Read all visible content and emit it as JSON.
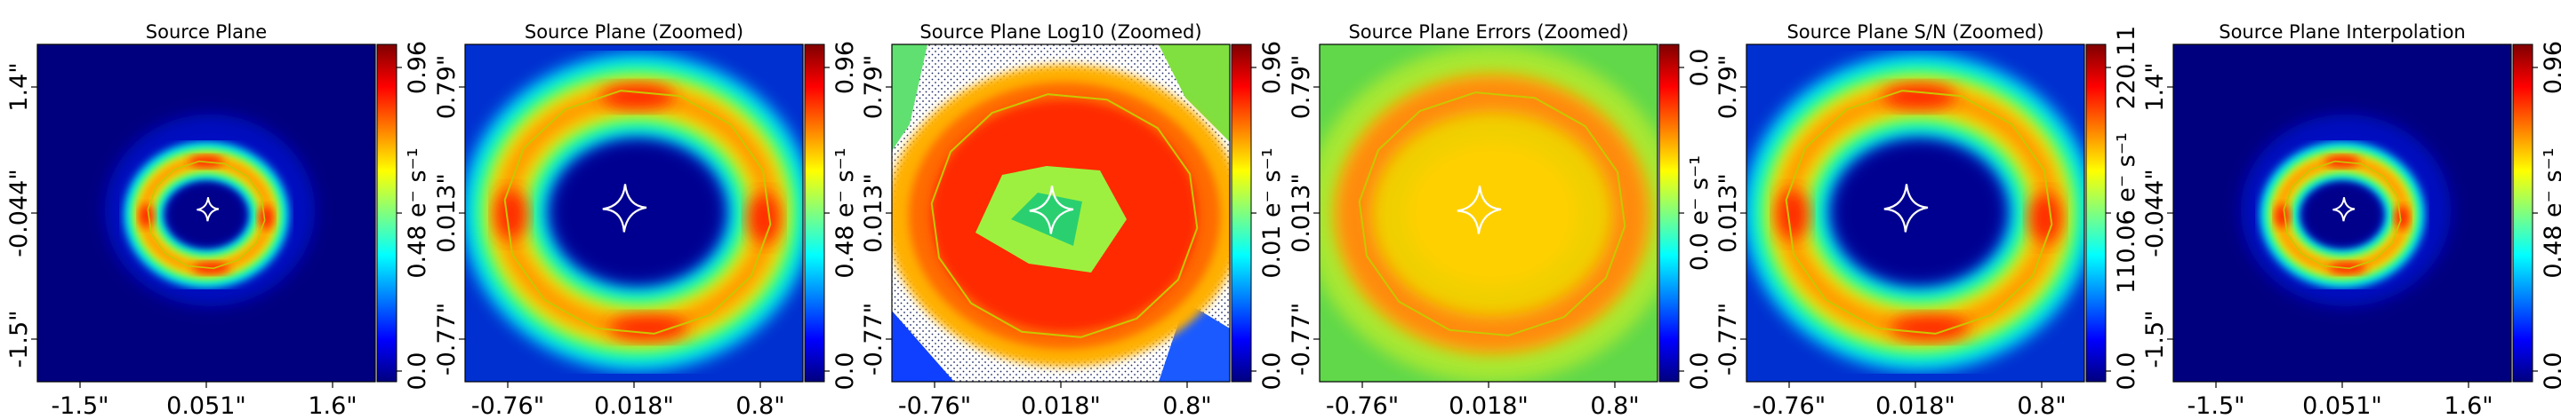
{
  "figure": {
    "colorscale": [
      "#00007f",
      "#0000ff",
      "#007fff",
      "#00ffff",
      "#7fff7f",
      "#ffff00",
      "#ff7f00",
      "#ff0000",
      "#7f0000"
    ],
    "caustic_color": "#ffffff",
    "critical_curve_color": "#c8c800",
    "masked_hatch_color": "#1c2a63"
  },
  "panels": [
    {
      "title": "Source Plane",
      "render": "full",
      "xticks": [
        "-1.5\"",
        "0.051\"",
        "1.6\""
      ],
      "yticks": [
        "1.4\"",
        "-0.044\"",
        "-1.5\""
      ],
      "colorbar": {
        "ticks": [
          "0.96",
          "0.48 e⁻ s⁻¹",
          "0.0"
        ]
      }
    },
    {
      "title": "Source Plane (Zoomed)",
      "render": "zoom",
      "xticks": [
        "-0.76\"",
        "0.018\"",
        "0.8\""
      ],
      "yticks": [
        "0.79\"",
        "0.013\"",
        "-0.77\""
      ],
      "colorbar": {
        "ticks": [
          "0.96",
          "0.48 e⁻ s⁻¹",
          "0.0"
        ]
      }
    },
    {
      "title": "Source Plane Log10 (Zoomed)",
      "render": "log",
      "xticks": [
        "-0.76\"",
        "0.018\"",
        "0.8\""
      ],
      "yticks": [
        "0.79\"",
        "0.013\"",
        "-0.77\""
      ],
      "colorbar": {
        "ticks": [
          "0.96",
          "0.01 e⁻ s⁻¹",
          "0.0"
        ]
      }
    },
    {
      "title": "Source Plane Errors (Zoomed)",
      "render": "errors",
      "xticks": [
        "-0.76\"",
        "0.018\"",
        "0.8\""
      ],
      "yticks": [
        "0.79\"",
        "0.013\"",
        "-0.77\""
      ],
      "colorbar": {
        "ticks": [
          "0.0",
          "0.0 e⁻ s⁻¹",
          "0.0"
        ]
      }
    },
    {
      "title": "Source Plane S/N (Zoomed)",
      "render": "zoom",
      "xticks": [
        "-0.76\"",
        "0.018\"",
        "0.8\""
      ],
      "yticks": [
        "0.79\"",
        "0.013\"",
        "-0.77\""
      ],
      "colorbar": {
        "ticks": [
          "220.11",
          "110.06 e⁻ s⁻¹",
          "0.0"
        ]
      }
    },
    {
      "title": "Source Plane Interpolation",
      "render": "full",
      "xticks": [
        "-1.5\"",
        "0.051\"",
        "1.6\""
      ],
      "yticks": [
        "1.4\"",
        "-0.044\"",
        "-1.5\""
      ],
      "colorbar": {
        "ticks": [
          "0.96",
          "0.48 e⁻ s⁻¹",
          "0.0"
        ]
      }
    }
  ]
}
